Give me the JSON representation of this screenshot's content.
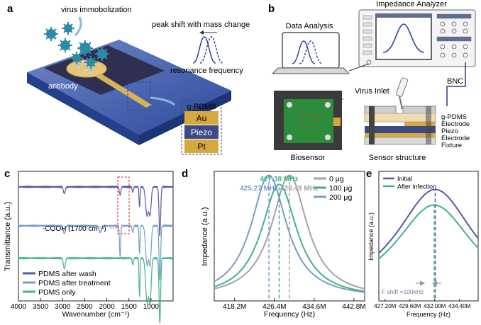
{
  "panels": {
    "a": {
      "letter": "a",
      "virus_label": "virus immobolization",
      "peak_label": "peak shift with mass change",
      "resonance_label": "resonance frequency",
      "antibody_label": "antibody",
      "stack_layers": [
        "g-PDMS",
        "Au",
        "Piezo",
        "Pt"
      ]
    },
    "b": {
      "letter": "b",
      "data_analysis_label": "Data Analysis",
      "impedance_analyzer_label": "Impedance Analyzer",
      "virus_inlet_label": "Virus Inlet",
      "bnc_label": "BNC",
      "biosensor_label": "Biosensor",
      "sensor_structure_label": "Sensor structure",
      "structure_layers": [
        "g-PDMS",
        "Electrode",
        "Piezo",
        "Electrode",
        "Fixture"
      ]
    },
    "c": {
      "letter": "c",
      "annotation": "-COOH (1700 cm⁻¹)"
    },
    "d": {
      "letter": "d",
      "peak_labels": [
        "427.38 MHz",
        "425.27 MHz",
        "429.49 MHz"
      ]
    },
    "e": {
      "letter": "e",
      "shift_label": "F shift =100kHz"
    }
  },
  "chart_data": [
    {
      "id": "c",
      "type": "line",
      "xlabel": "Wavenumber (cm⁻¹)",
      "ylabel": "Transmittance (a.u.)",
      "xlim": [
        4000,
        500
      ],
      "x_ticks": [
        4000,
        3500,
        3000,
        2500,
        2000,
        1500,
        1000
      ],
      "legend": "bottom-left",
      "series": [
        {
          "name": "PDMS after wash",
          "color": "#5b57a6",
          "baseline": 0.88,
          "dips": [
            [
              2962,
              0.05,
              30
            ],
            [
              1700,
              0.06,
              25
            ],
            [
              1412,
              0.04,
              20
            ],
            [
              1260,
              0.16,
              15
            ],
            [
              1090,
              0.22,
              45
            ],
            [
              1020,
              0.2,
              35
            ],
            [
              800,
              0.38,
              25
            ]
          ]
        },
        {
          "name": "PDMS after treatment",
          "color": "#7a9cc6",
          "baseline": 0.58,
          "dips": [
            [
              2962,
              0.06,
              30
            ],
            [
              2150,
              0.05,
              40
            ],
            [
              1700,
              0.24,
              18
            ],
            [
              1412,
              0.05,
              20
            ],
            [
              1260,
              0.22,
              15
            ],
            [
              1090,
              0.3,
              45
            ],
            [
              1020,
              0.28,
              35
            ],
            [
              800,
              0.42,
              25
            ]
          ]
        },
        {
          "name": "PDMS only",
          "color": "#3fb28c",
          "baseline": 0.33,
          "dips": [
            [
              2962,
              0.08,
              30
            ],
            [
              1412,
              0.05,
              20
            ],
            [
              1260,
              0.3,
              15
            ],
            [
              1090,
              0.34,
              45
            ],
            [
              1020,
              0.32,
              35
            ],
            [
              800,
              0.5,
              25
            ]
          ]
        }
      ]
    },
    {
      "id": "d",
      "type": "line",
      "xlabel": "Frequency (Hz)",
      "ylabel": "Impedance (a.u.)",
      "xlim": [
        414,
        445
      ],
      "x_ticks": [
        418.2,
        426.4,
        434.6,
        442.8
      ],
      "x_tick_labels": [
        "418.2M",
        "426.4M",
        "434.6M",
        "442.8M"
      ],
      "legend": "top-right",
      "series": [
        {
          "name": "0 μg",
          "color": "#a3a3a3",
          "peak": 429.49,
          "height": 0.95,
          "width": 4.5
        },
        {
          "name": "100 μg",
          "color": "#3fb28c",
          "peak": 427.38,
          "height": 0.88,
          "width": 4.5
        },
        {
          "name": "200 μg",
          "color": "#7a9cc6",
          "peak": 425.27,
          "height": 0.95,
          "width": 4.5
        }
      ]
    },
    {
      "id": "e",
      "type": "line",
      "xlabel": "Frequency (Hz)",
      "ylabel": "Impedance (a.u.)",
      "xlim": [
        426.6,
        436.2
      ],
      "x_ticks": [
        427.2,
        429.6,
        432.0,
        434.4
      ],
      "x_tick_labels": [
        "427.20M",
        "429.60M",
        "432.00M",
        "434.40M"
      ],
      "legend": "top-left",
      "series": [
        {
          "name": "Initial",
          "color": "#5b57a6",
          "peak": 432.05,
          "height": 0.84,
          "width": 4.6
        },
        {
          "name": "After infection",
          "color": "#3fb28c",
          "peak": 431.95,
          "height": 0.72,
          "width": 4.6
        }
      ]
    }
  ],
  "colors": {
    "blue_board": "#3c5aa6",
    "gold": "#d6a93f",
    "piezo": "#3c4a86",
    "virus": "#2e8ba6",
    "analyzer_blue": "#5f6d92",
    "pcb_green": "#2c8c3c"
  }
}
